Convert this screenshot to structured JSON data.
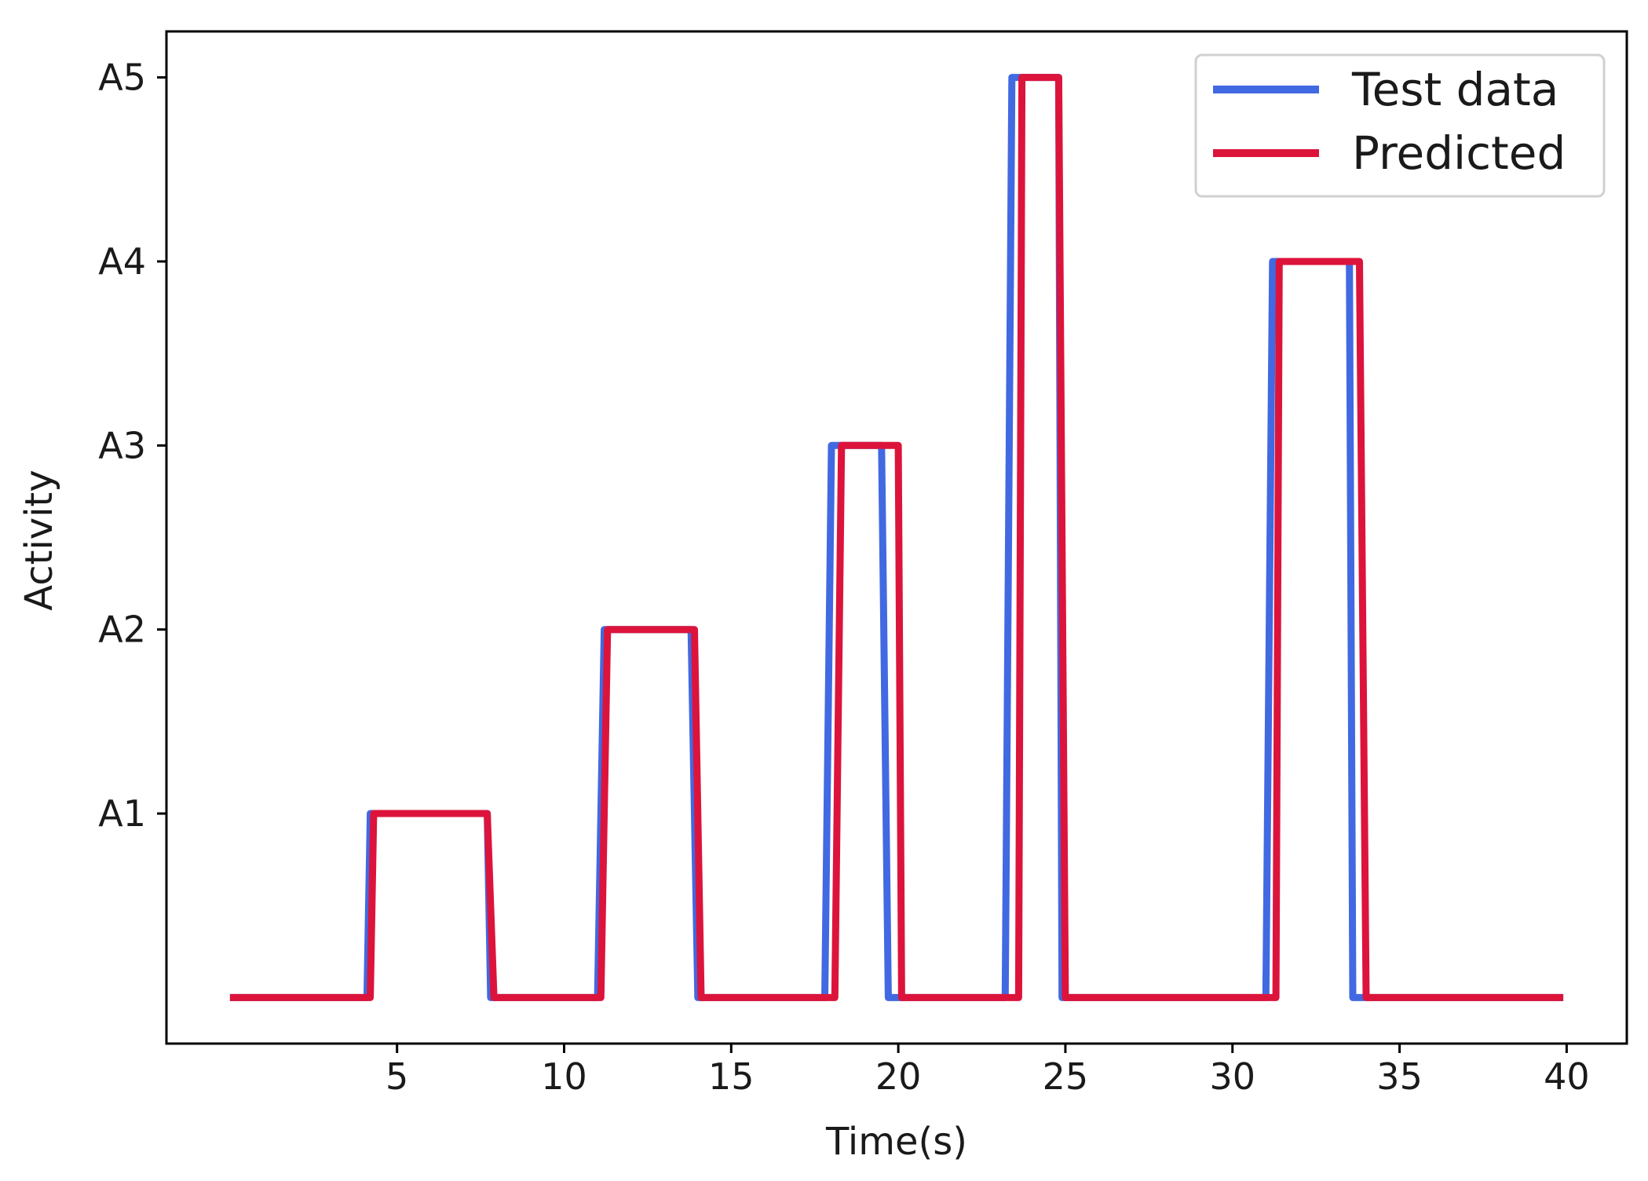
{
  "chart_data": {
    "type": "line",
    "step": true,
    "xlabel": "Time(s)",
    "ylabel": "Activity",
    "xlim": [
      -1.9,
      41.8
    ],
    "ylim": [
      -0.25,
      5.25
    ],
    "x_ticks": [
      5,
      10,
      15,
      20,
      25,
      30,
      35,
      40
    ],
    "y_ticks": [
      {
        "value": 1,
        "label": "A1"
      },
      {
        "value": 2,
        "label": "A2"
      },
      {
        "value": 3,
        "label": "A3"
      },
      {
        "value": 4,
        "label": "A4"
      },
      {
        "value": 5,
        "label": "A5"
      }
    ],
    "grid": false,
    "legend_position": "top-right",
    "series": [
      {
        "name": "Test data",
        "color": "#4169e1",
        "points": [
          [
            0,
            0
          ],
          [
            4.1,
            0
          ],
          [
            4.2,
            1
          ],
          [
            7.7,
            1
          ],
          [
            7.8,
            0
          ],
          [
            11.0,
            0
          ],
          [
            11.2,
            2
          ],
          [
            13.8,
            2
          ],
          [
            14.0,
            0
          ],
          [
            17.8,
            0
          ],
          [
            18.0,
            3
          ],
          [
            19.5,
            3
          ],
          [
            19.7,
            0
          ],
          [
            23.2,
            0
          ],
          [
            23.4,
            5
          ],
          [
            24.8,
            5
          ],
          [
            24.9,
            0
          ],
          [
            31.0,
            0
          ],
          [
            31.2,
            4
          ],
          [
            33.5,
            4
          ],
          [
            33.6,
            0
          ],
          [
            39.9,
            0
          ]
        ]
      },
      {
        "name": "Predicted",
        "color": "#dc143c",
        "points": [
          [
            0,
            0
          ],
          [
            4.2,
            0
          ],
          [
            4.3,
            1
          ],
          [
            7.7,
            1
          ],
          [
            7.9,
            0
          ],
          [
            11.1,
            0
          ],
          [
            11.3,
            2
          ],
          [
            13.9,
            2
          ],
          [
            14.1,
            0
          ],
          [
            18.1,
            0
          ],
          [
            18.3,
            3
          ],
          [
            20.0,
            3
          ],
          [
            20.1,
            0
          ],
          [
            23.6,
            0
          ],
          [
            23.7,
            5
          ],
          [
            24.8,
            5
          ],
          [
            25.0,
            0
          ],
          [
            31.3,
            0
          ],
          [
            31.4,
            4
          ],
          [
            33.8,
            4
          ],
          [
            34.0,
            0
          ],
          [
            39.9,
            0
          ]
        ]
      }
    ]
  }
}
